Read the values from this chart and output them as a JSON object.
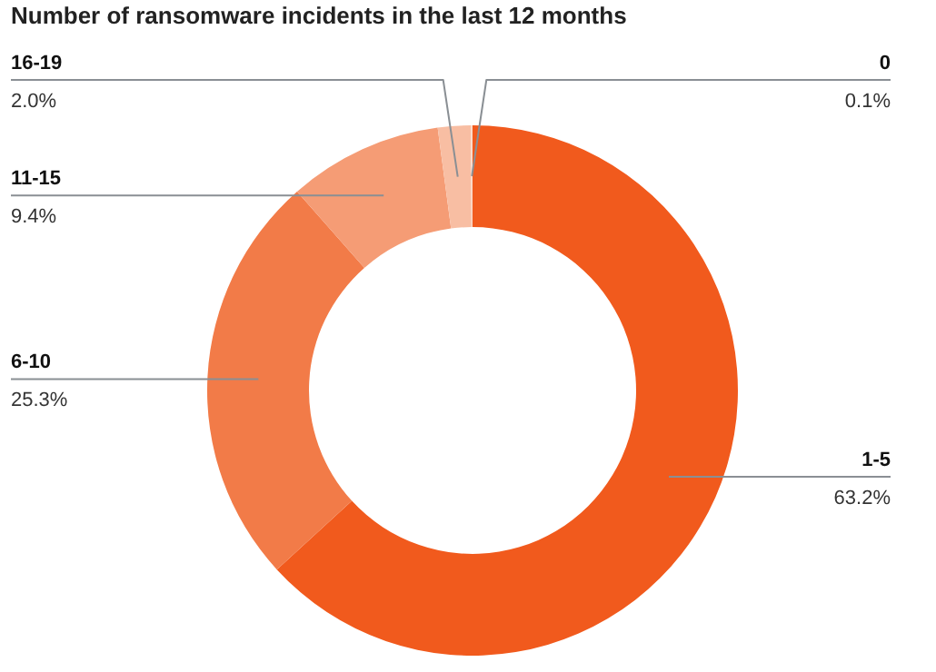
{
  "chart_data": {
    "type": "donut",
    "title": "Number of ransomware incidents in the last 12 months",
    "categories": [
      "1-5",
      "6-10",
      "11-15",
      "16-19",
      "0"
    ],
    "values": [
      63.2,
      25.3,
      9.4,
      2.0,
      0.1
    ],
    "value_labels": [
      "63.2%",
      "25.3%",
      "9.4%",
      "2.0%",
      "0.1%"
    ],
    "colors": [
      "#f15a1d",
      "#f27b48",
      "#f59c75",
      "#f8bea3",
      "#fbd9c9"
    ]
  }
}
